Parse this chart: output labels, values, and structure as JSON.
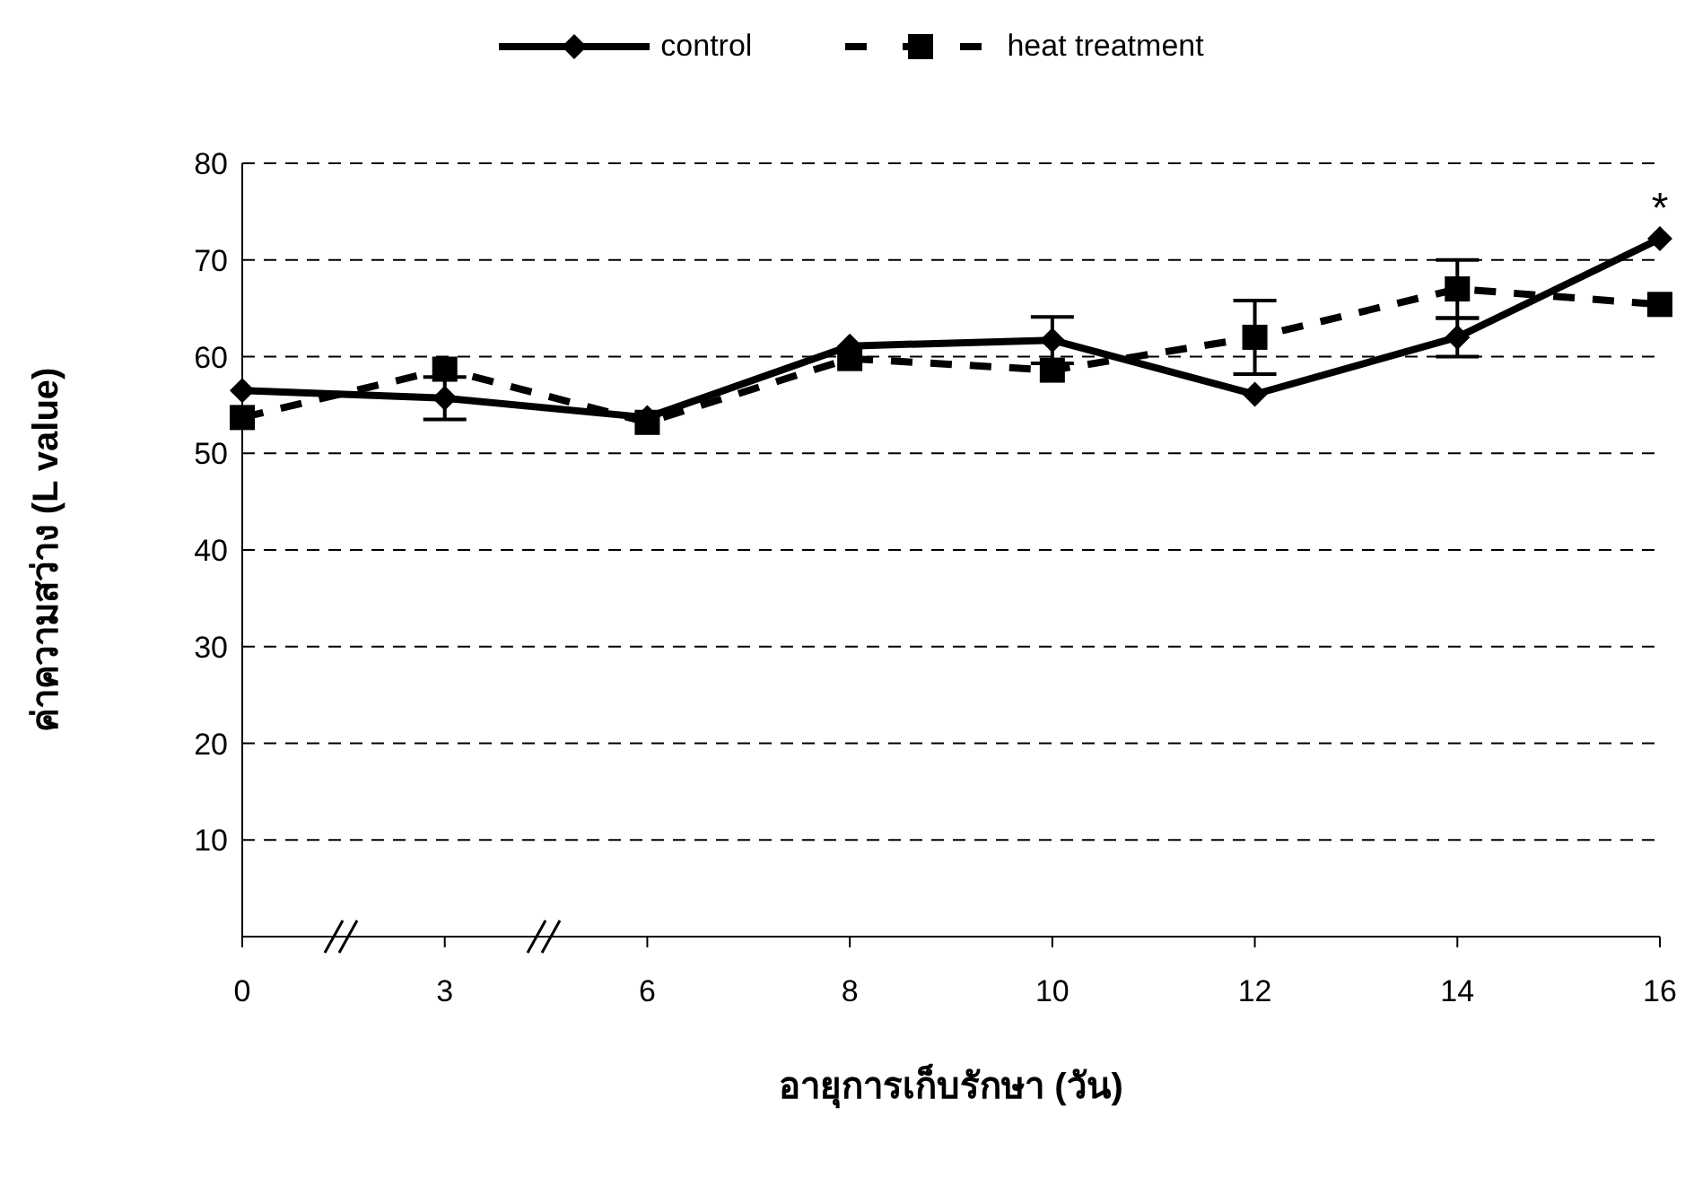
{
  "chart_data": {
    "type": "line",
    "xlabel": "อายุการเก็บรักษา (วัน)",
    "ylabel": "ค่าความสว่าง (L value)",
    "categories": [
      "0",
      "3",
      "6",
      "8",
      "10",
      "12",
      "14",
      "16"
    ],
    "series": [
      {
        "name": "control",
        "color": "#000000",
        "marker": "diamond",
        "line_style": "solid",
        "values": [
          56.5,
          55.7,
          53.7,
          61.1,
          61.7,
          56.1,
          62.0,
          72.2
        ],
        "errors": [
          null,
          2.2,
          null,
          null,
          2.4,
          null,
          2.0,
          null
        ]
      },
      {
        "name": "heat treatment",
        "color": "#000000",
        "marker": "square",
        "line_style": "dashed",
        "values": [
          53.7,
          58.7,
          53.2,
          59.8,
          58.6,
          62.0,
          67.0,
          65.4
        ],
        "errors": [
          null,
          null,
          null,
          null,
          null,
          3.8,
          3.0,
          null
        ]
      }
    ],
    "ylim": [
      0,
      80
    ],
    "yticks": [
      {
        "value": 0,
        "label": null
      },
      10,
      20,
      30,
      40,
      50,
      60,
      70,
      80
    ],
    "grid": "y",
    "legend": "top",
    "annotations": [
      "*"
    ]
  }
}
